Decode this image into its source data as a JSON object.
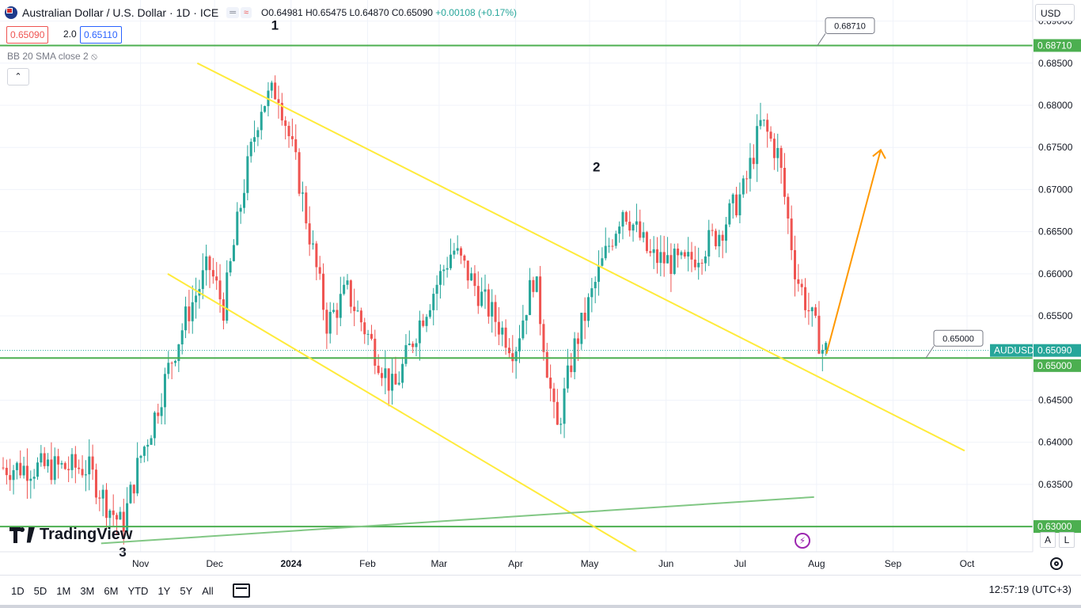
{
  "header": {
    "symbol_title": "Australian Dollar / U.S. Dollar · 1D · ICE",
    "badge_1": "═",
    "badge_2": "≈",
    "open": "O0.64981",
    "high": "H0.65475",
    "low": "L0.64870",
    "close": "C0.65090",
    "change": "+0.00108 (+0.17%)"
  },
  "trade": {
    "sell_price": "0.65090",
    "spread": "2.0",
    "buy_price": "0.65110"
  },
  "indicator": {
    "label": "BB 20 SMA close 2",
    "hidden_icon": "eye-crossed-icon"
  },
  "currency_select": "USD",
  "price_scale": {
    "ticks": [
      "0.69000",
      "0.68500",
      "0.68000",
      "0.67500",
      "0.67000",
      "0.66500",
      "0.66000",
      "0.65500",
      "0.64500",
      "0.64000",
      "0.63500"
    ],
    "tick_values": [
      0.69,
      0.685,
      0.68,
      0.675,
      0.67,
      0.665,
      0.66,
      0.655,
      0.645,
      0.64,
      0.635
    ],
    "labels": {
      "level_top": "0.68710",
      "symbol": "AUDUSD",
      "current": "0.65090",
      "level_mid": "0.65000",
      "level_low": "0.63000"
    }
  },
  "time_scale": {
    "labels": [
      "Nov",
      "Dec",
      "2024",
      "Feb",
      "Mar",
      "Apr",
      "May",
      "Jun",
      "Jul",
      "Aug",
      "Sep",
      "Oct"
    ]
  },
  "annotations": {
    "point_1": "1",
    "point_2": "2",
    "point_3": "3",
    "callout_top": "0.68710",
    "callout_mid": "0.65000"
  },
  "branding": {
    "logo_text": "TradingView"
  },
  "toolbar": {
    "timeframes": [
      "1D",
      "5D",
      "1M",
      "3M",
      "6M",
      "YTD",
      "1Y",
      "5Y",
      "All"
    ],
    "clock": "12:57:19 (UTC+3)",
    "auto_scale": "A",
    "log_scale": "L"
  },
  "colors": {
    "up": "#26a69a",
    "down": "#ef5350",
    "horizontal_levels": "#4caf50",
    "channel_lines": "#ffeb3b",
    "arrow": "#ff9800",
    "rising_trendline": "#81c784"
  },
  "chart_data": {
    "type": "candlestick",
    "symbol": "AUDUSD",
    "timeframe": "1D",
    "ylim": [
      0.627,
      0.6925
    ],
    "last_price": 0.6509,
    "horizontal_levels": [
      0.6871,
      0.65,
      0.63
    ],
    "pivot_markers": [
      {
        "label": "1",
        "date": "2023-12-28",
        "price": 0.6871
      },
      {
        "label": "2",
        "date": "2024-05-16",
        "price": 0.6714
      },
      {
        "label": "3",
        "date": "2023-10-26",
        "price": 0.627
      }
    ],
    "channel_upper": {
      "from": [
        "2023-11-24",
        0.685
      ],
      "to": [
        "2024-09-30",
        0.639
      ]
    },
    "channel_lower": {
      "from": [
        "2023-11-12",
        0.66
      ],
      "to": [
        "2024-05-20",
        0.627
      ]
    },
    "rising_trendline": {
      "from": [
        "2023-10-16",
        0.628
      ],
      "to": [
        "2024-07-31",
        0.6335
      ]
    },
    "forecast_arrow": {
      "from": [
        "2024-08-05",
        0.6505
      ],
      "to": [
        "2024-08-27",
        0.6747
      ]
    },
    "ohlc_sample": [
      {
        "date": "2023-10-12",
        "open": 0.64,
        "high": 0.644,
        "low": 0.636,
        "close": 0.637
      },
      {
        "date": "2023-10-26",
        "open": 0.629,
        "high": 0.631,
        "low": 0.627,
        "close": 0.63
      },
      {
        "date": "2023-11-14",
        "open": 0.6395,
        "high": 0.651,
        "low": 0.638,
        "close": 0.649
      },
      {
        "date": "2023-11-30",
        "open": 0.66,
        "high": 0.665,
        "low": 0.658,
        "close": 0.661
      },
      {
        "date": "2023-12-28",
        "open": 0.683,
        "high": 0.6871,
        "low": 0.68,
        "close": 0.682
      },
      {
        "date": "2024-01-17",
        "open": 0.659,
        "high": 0.661,
        "low": 0.653,
        "close": 0.654
      },
      {
        "date": "2024-02-13",
        "open": 0.651,
        "high": 0.653,
        "low": 0.6445,
        "close": 0.646
      },
      {
        "date": "2024-03-08",
        "open": 0.66,
        "high": 0.666,
        "low": 0.659,
        "close": 0.663
      },
      {
        "date": "2024-04-19",
        "open": 0.642,
        "high": 0.645,
        "low": 0.636,
        "close": 0.641
      },
      {
        "date": "2024-05-16",
        "open": 0.669,
        "high": 0.6714,
        "low": 0.666,
        "close": 0.668
      },
      {
        "date": "2024-07-11",
        "open": 0.676,
        "high": 0.6799,
        "low": 0.675,
        "close": 0.678
      },
      {
        "date": "2024-08-05",
        "open": 0.64981,
        "high": 0.65475,
        "low": 0.6487,
        "close": 0.6509
      }
    ]
  }
}
